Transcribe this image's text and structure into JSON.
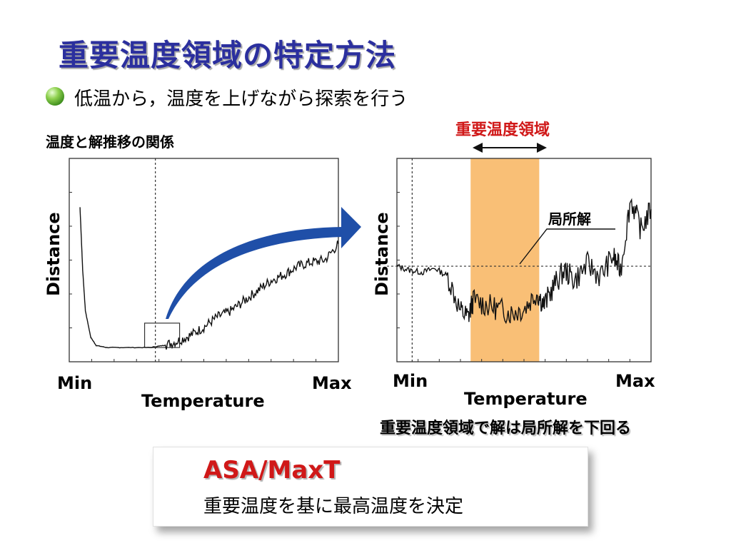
{
  "header": {
    "title": "重要温度領域の特定方法",
    "subtitle": "低温から，温度を上げながら探索を行う",
    "relation_label": "温度と解推移の関係"
  },
  "right_chart_annotations": {
    "region_title": "重要温度領域",
    "local_solution_label": "局所解",
    "note": "重要温度領域で解は局所解を下回る"
  },
  "summary_box": {
    "title": "ASA/MaxT",
    "description": "重要温度を基に最高温度を決定"
  },
  "colors": {
    "title": "#2b2f9e",
    "accent_red": "#d01818",
    "arrow_blue": "#1f4fa8",
    "region_fill": "#f9bf76"
  },
  "chart_data": [
    {
      "type": "line",
      "xlabel": "Temperature",
      "ylabel": "Distance",
      "x_tick_labels": [
        "Min",
        "Max"
      ],
      "xlim": [
        0,
        1
      ],
      "ylim": [
        0,
        1
      ],
      "grid": false,
      "series": [
        {
          "x": [
            0.04,
            0.05,
            0.06,
            0.08,
            0.1,
            0.14,
            0.2,
            0.3,
            0.35,
            0.4,
            0.45,
            0.5,
            0.55,
            0.6,
            0.65,
            0.7,
            0.75,
            0.8,
            0.85,
            0.9,
            0.95,
            1.0
          ],
          "y": [
            0.76,
            0.45,
            0.25,
            0.12,
            0.08,
            0.07,
            0.07,
            0.07,
            0.08,
            0.1,
            0.13,
            0.17,
            0.22,
            0.25,
            0.3,
            0.35,
            0.4,
            0.43,
            0.47,
            0.49,
            0.5,
            0.58
          ]
        }
      ],
      "annotations": {
        "vertical_dashed_line_x": 0.32,
        "highlight_box_x": [
          0.28,
          0.41
        ]
      }
    },
    {
      "type": "line",
      "xlabel": "Temperature",
      "ylabel": "Distance",
      "x_tick_labels": [
        "Min",
        "Max"
      ],
      "xlim": [
        0,
        1
      ],
      "ylim": [
        0,
        1
      ],
      "grid": false,
      "series": [
        {
          "x": [
            0.0,
            0.05,
            0.1,
            0.15,
            0.2,
            0.25,
            0.28,
            0.3,
            0.35,
            0.4,
            0.45,
            0.5,
            0.55,
            0.58,
            0.62,
            0.66,
            0.7,
            0.75,
            0.8,
            0.85,
            0.88,
            0.92,
            0.96,
            1.0
          ],
          "y": [
            0.47,
            0.45,
            0.44,
            0.46,
            0.42,
            0.25,
            0.22,
            0.3,
            0.28,
            0.26,
            0.24,
            0.26,
            0.34,
            0.28,
            0.38,
            0.45,
            0.4,
            0.48,
            0.42,
            0.52,
            0.45,
            0.8,
            0.65,
            0.75
          ]
        }
      ],
      "annotations": {
        "vertical_dashed_line_x": 0.06,
        "local_solution_y": 0.47,
        "region_x": [
          0.29,
          0.56
        ]
      }
    }
  ]
}
